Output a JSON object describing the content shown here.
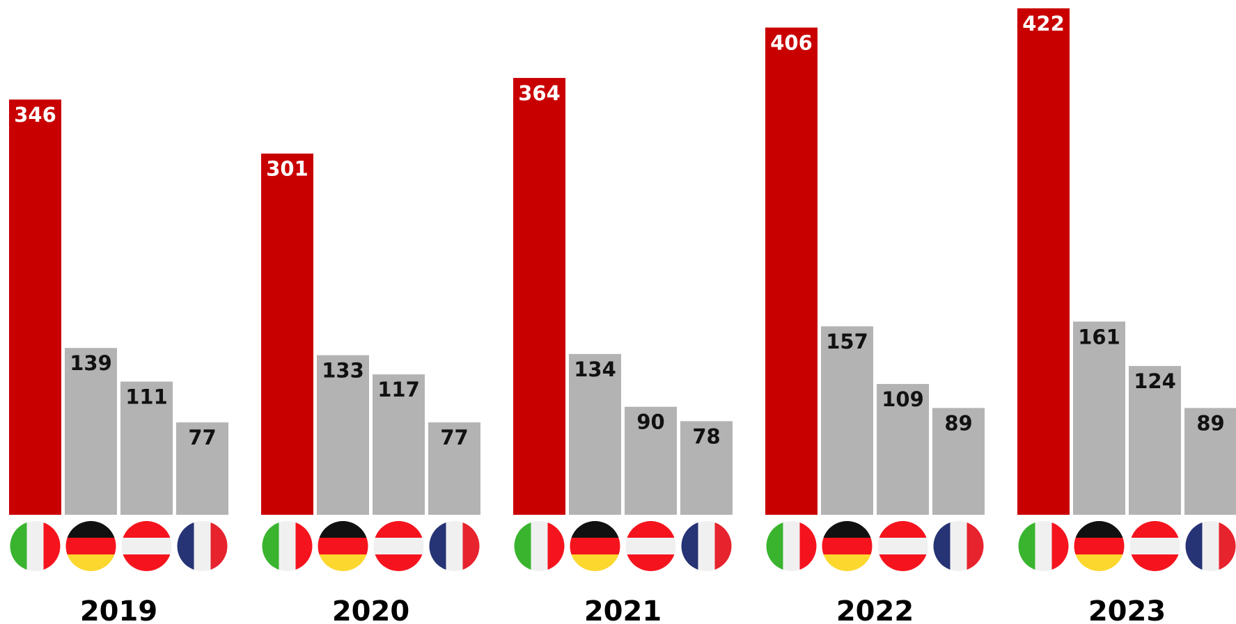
{
  "chart_data": {
    "type": "bar",
    "categories": [
      "2019",
      "2020",
      "2021",
      "2022",
      "2023"
    ],
    "series": [
      {
        "flag": "italy-flag-icon",
        "values": [
          346,
          301,
          364,
          406,
          422
        ]
      },
      {
        "flag": "germany-flag-icon",
        "values": [
          139,
          133,
          134,
          157,
          161
        ]
      },
      {
        "flag": "austria-flag-icon",
        "values": [
          111,
          117,
          90,
          109,
          124
        ]
      },
      {
        "flag": "france-flag-icon",
        "values": [
          77,
          77,
          78,
          89,
          89
        ]
      }
    ],
    "ylim": [
      0,
      422
    ],
    "grid": false,
    "colors": {
      "highlight": "#c90000",
      "other": "#b3b3b3",
      "highlight_label": "#ffffff",
      "other_label": "#111111"
    }
  }
}
